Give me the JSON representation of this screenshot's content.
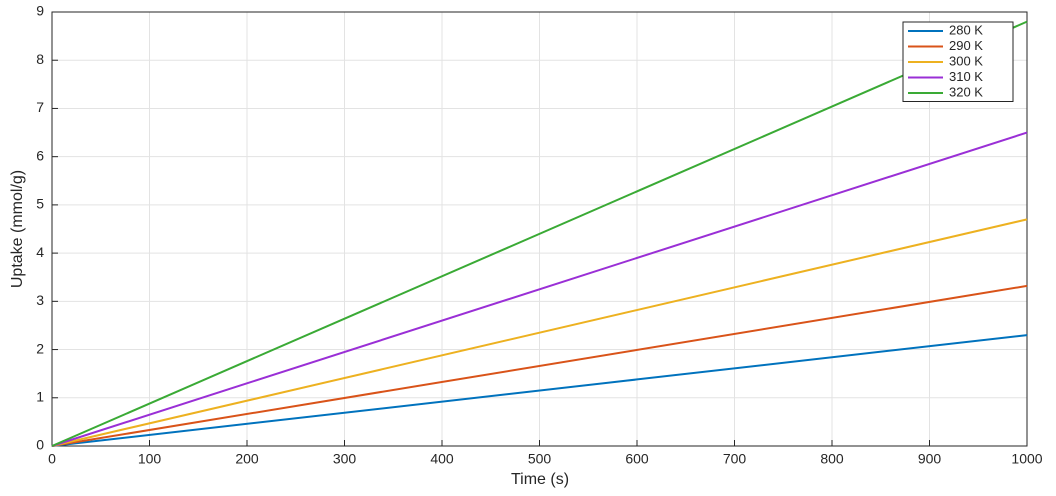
{
  "chart_data": {
    "type": "line",
    "x_label": "Time (s)",
    "y_label": "Uptake (mmol/g)",
    "x": [
      0,
      1000
    ],
    "series": [
      {
        "name": "280 K",
        "color": "#0072bd",
        "values": [
          0,
          2.3
        ]
      },
      {
        "name": "290 K",
        "color": "#d95319",
        "values": [
          0,
          3.32
        ]
      },
      {
        "name": "300 K",
        "color": "#edb120",
        "values": [
          0,
          4.7
        ]
      },
      {
        "name": "310 K",
        "color": "#9a2fd6",
        "values": [
          0,
          6.5
        ]
      },
      {
        "name": "320 K",
        "color": "#3aaa35",
        "values": [
          0,
          8.8
        ]
      }
    ],
    "xlim": [
      0,
      1000
    ],
    "xticks": [
      0,
      100,
      200,
      300,
      400,
      500,
      600,
      700,
      800,
      900,
      1000
    ],
    "ylim": [
      0,
      9
    ],
    "yticks": [
      0,
      1,
      2,
      3,
      4,
      5,
      6,
      7,
      8,
      9
    ],
    "grid": true,
    "legend": "top-right"
  }
}
